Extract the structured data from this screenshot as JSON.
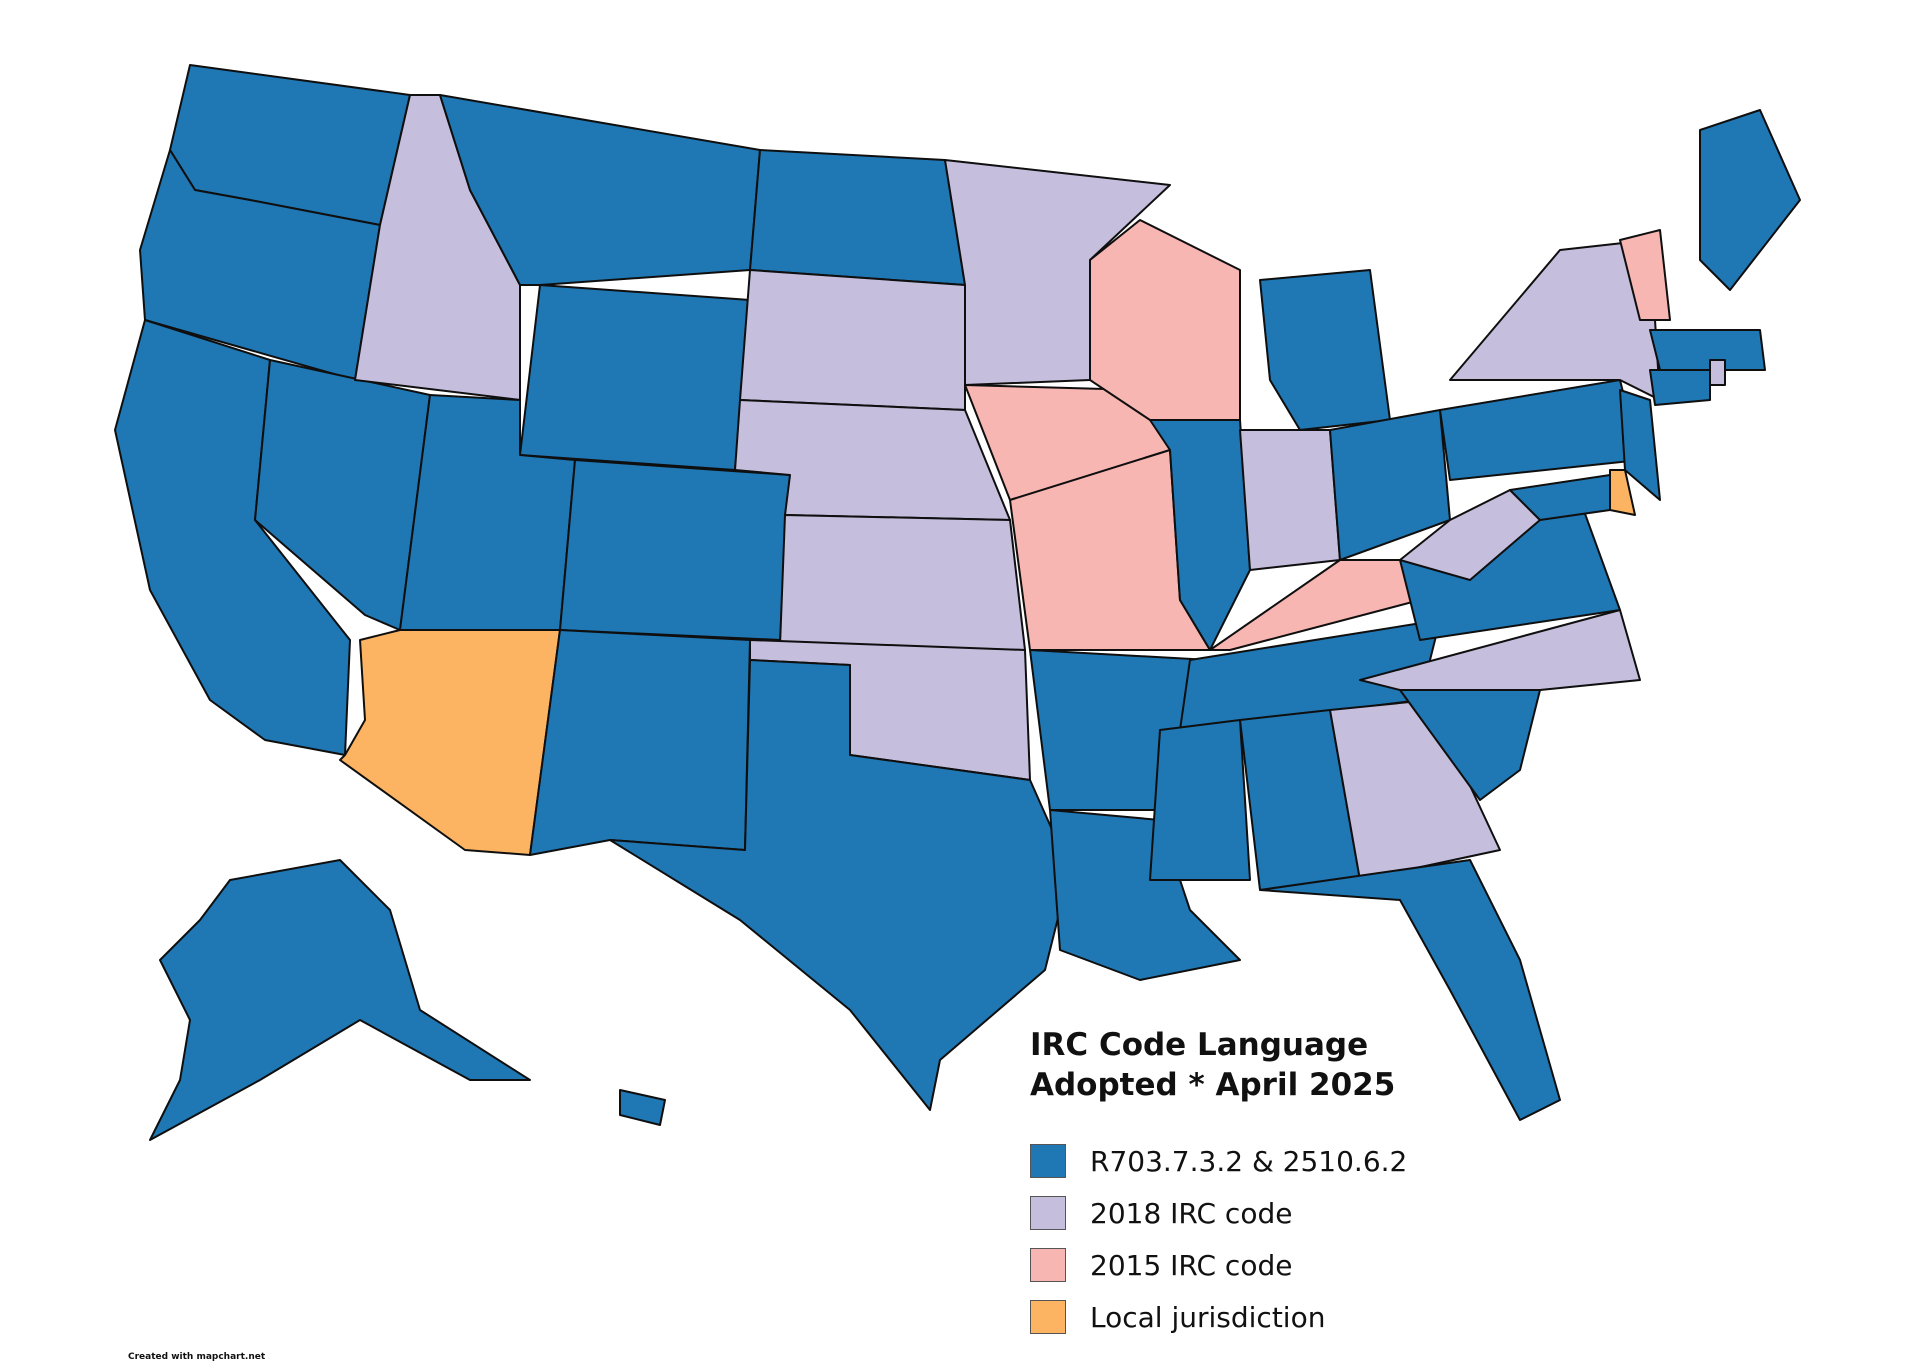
{
  "legend": {
    "title_line1": "IRC Code Language",
    "title_line2": "Adopted * April 2025",
    "items": [
      {
        "label": "R703.7.3.2 & 2510.6.2",
        "color": "#1f77b4"
      },
      {
        "label": "2018 IRC code",
        "color": "#c5bedd"
      },
      {
        "label": "2015 IRC code",
        "color": "#f7b6b2"
      },
      {
        "label": "Local jurisdiction",
        "color": "#fdb462"
      }
    ]
  },
  "credit": "Created with mapchart.net",
  "categories": {
    "R703.7.3.2 & 2510.6.2": [
      "Washington",
      "Oregon",
      "California",
      "Nevada",
      "Utah",
      "Montana",
      "Wyoming",
      "Colorado",
      "New Mexico",
      "North Dakota",
      "Texas",
      "Arkansas",
      "Louisiana",
      "Mississippi",
      "Alabama",
      "Tennessee",
      "Illinois",
      "Michigan",
      "Ohio",
      "Pennsylvania",
      "New Jersey",
      "Maryland",
      "Virginia",
      "South Carolina",
      "Florida",
      "Maine",
      "Massachusetts",
      "Connecticut",
      "Alaska",
      "Hawaii"
    ],
    "2018 IRC code": [
      "Idaho",
      "South Dakota",
      "Nebraska",
      "Kansas",
      "Oklahoma",
      "Minnesota",
      "Indiana",
      "West Virginia",
      "North Carolina",
      "Georgia",
      "New York",
      "Rhode Island"
    ],
    "2015 IRC code": [
      "Wisconsin",
      "Iowa",
      "Missouri",
      "Kentucky",
      "Vermont"
    ],
    "Local jurisdiction": [
      "Arizona",
      "Delaware"
    ]
  }
}
